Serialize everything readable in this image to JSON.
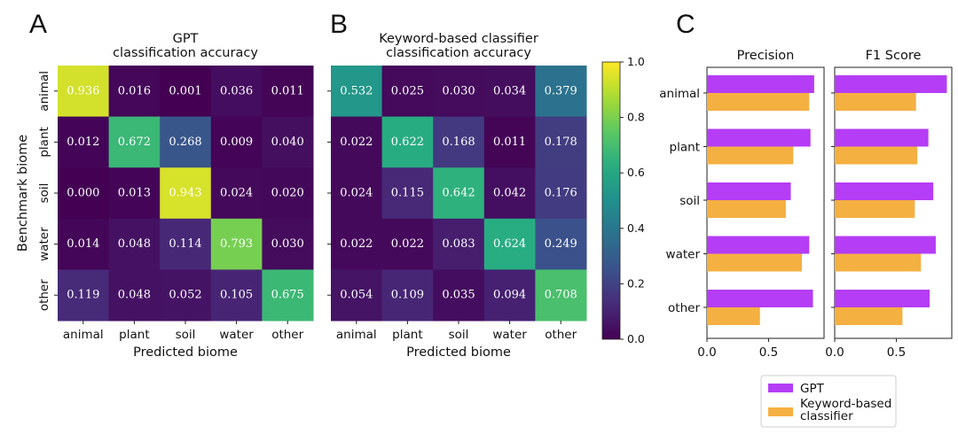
{
  "panels": [
    "A",
    "B",
    "C"
  ],
  "colors": {
    "gpt": "#b53df5",
    "keyword": "#f5b042"
  },
  "chart_data": [
    {
      "type": "heatmap",
      "title": "GPT\nclassification accuracy",
      "xlabel": "Predicted biome",
      "ylabel": "Benchmark biome",
      "x": [
        "animal",
        "plant",
        "soil",
        "water",
        "other"
      ],
      "y": [
        "animal",
        "plant",
        "soil",
        "water",
        "other"
      ],
      "values": [
        [
          0.936,
          0.016,
          0.001,
          0.036,
          0.011
        ],
        [
          0.012,
          0.672,
          0.268,
          0.009,
          0.04
        ],
        [
          0.0,
          0.013,
          0.943,
          0.024,
          0.02
        ],
        [
          0.014,
          0.048,
          0.114,
          0.793,
          0.03
        ],
        [
          0.119,
          0.048,
          0.052,
          0.105,
          0.675
        ]
      ]
    },
    {
      "type": "heatmap",
      "title": "Keyword-based classifier\nclassification accuracy",
      "xlabel": "Predicted biome",
      "x": [
        "animal",
        "plant",
        "soil",
        "water",
        "other"
      ],
      "y": [
        "animal",
        "plant",
        "soil",
        "water",
        "other"
      ],
      "values": [
        [
          0.532,
          0.025,
          0.03,
          0.034,
          0.379
        ],
        [
          0.022,
          0.622,
          0.168,
          0.011,
          0.178
        ],
        [
          0.024,
          0.115,
          0.642,
          0.042,
          0.176
        ],
        [
          0.022,
          0.022,
          0.083,
          0.624,
          0.249
        ],
        [
          0.054,
          0.109,
          0.035,
          0.094,
          0.708
        ]
      ],
      "colorbar": {
        "range": [
          0.0,
          1.0
        ],
        "ticks": [
          "0.0",
          "0.2",
          "0.4",
          "0.6",
          "0.8",
          "1.0"
        ],
        "colormap": "viridis"
      }
    },
    {
      "type": "bar",
      "orientation": "horizontal",
      "title": "Precision",
      "categories": [
        "animal",
        "plant",
        "soil",
        "water",
        "other"
      ],
      "series": [
        {
          "name": "GPT",
          "values": [
            0.87,
            0.84,
            0.68,
            0.83,
            0.86
          ]
        },
        {
          "name": "Keyword-based\nclassifier",
          "values": [
            0.83,
            0.7,
            0.64,
            0.77,
            0.43
          ]
        }
      ],
      "xlim": [
        0,
        0.95
      ],
      "xticks": [
        "0.0",
        "0.5"
      ]
    },
    {
      "type": "bar",
      "orientation": "horizontal",
      "title": "F1 Score",
      "categories": [
        "animal",
        "plant",
        "soil",
        "water",
        "other"
      ],
      "series": [
        {
          "name": "GPT",
          "values": [
            0.91,
            0.76,
            0.8,
            0.82,
            0.77
          ]
        },
        {
          "name": "Keyword-based\nclassifier",
          "values": [
            0.66,
            0.67,
            0.65,
            0.7,
            0.55
          ]
        }
      ],
      "xlim": [
        0,
        0.95
      ],
      "xticks": [
        "0.0",
        "0.5"
      ]
    }
  ],
  "legend": {
    "placement": "bottom-center",
    "entries": [
      "GPT",
      "Keyword-based\nclassifier"
    ]
  }
}
